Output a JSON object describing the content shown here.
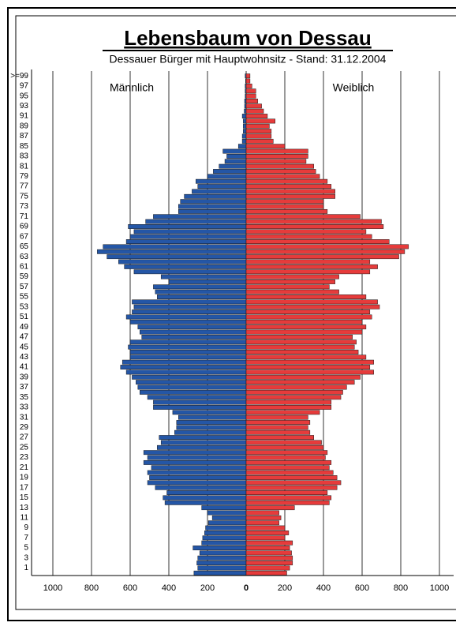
{
  "chart_data": {
    "type": "pyramid",
    "title": "Lebensbaum von Dessau",
    "subtitle": "Dessauer Bürger mit Hauptwohnsitz - Stand: 31.12.2004",
    "categories": [
      null,
      "1",
      null,
      "3",
      null,
      "5",
      null,
      "7",
      null,
      "9",
      null,
      "11",
      null,
      "13",
      null,
      "15",
      null,
      "17",
      null,
      "19",
      null,
      "21",
      null,
      "23",
      null,
      "25",
      null,
      "27",
      null,
      "29",
      null,
      "31",
      null,
      "33",
      null,
      "35",
      null,
      "37",
      null,
      "39",
      null,
      "41",
      null,
      "43",
      null,
      "45",
      null,
      "47",
      null,
      "49",
      null,
      "51",
      null,
      "53",
      null,
      "55",
      null,
      "57",
      null,
      "59",
      null,
      "61",
      null,
      "63",
      null,
      "65",
      null,
      "67",
      null,
      "69",
      null,
      "71",
      null,
      "73",
      null,
      "75",
      null,
      "77",
      null,
      "79",
      null,
      "81",
      null,
      "83",
      null,
      "85",
      null,
      "87",
      null,
      "89",
      null,
      "91",
      null,
      "93",
      null,
      "95",
      null,
      "97",
      null,
      ">=99"
    ],
    "series": [
      {
        "name": "Männlich",
        "color": "#2456a6",
        "values": [
          -270,
          -250,
          -255,
          -250,
          -240,
          -275,
          -230,
          -225,
          -215,
          -210,
          -195,
          -175,
          -200,
          -230,
          -420,
          -430,
          -410,
          -470,
          -510,
          -500,
          -510,
          -490,
          -530,
          -510,
          -530,
          -460,
          -440,
          -450,
          -370,
          -360,
          -360,
          -350,
          -380,
          -480,
          -480,
          -510,
          -550,
          -560,
          -570,
          -590,
          -620,
          -650,
          -640,
          -600,
          -600,
          -610,
          -600,
          -540,
          -550,
          -560,
          -600,
          -620,
          -590,
          -580,
          -590,
          -460,
          -470,
          -480,
          -400,
          -440,
          -580,
          -630,
          -660,
          -720,
          -770,
          -740,
          -620,
          -600,
          -580,
          -610,
          -520,
          -480,
          -350,
          -350,
          -340,
          -320,
          -280,
          -250,
          -260,
          -200,
          -170,
          -140,
          -110,
          -100,
          -120,
          -40,
          -20,
          -20,
          -15,
          -15,
          -15,
          -20,
          -10,
          -8,
          -8,
          -5,
          -5,
          -5,
          -3,
          -5
        ]
      },
      {
        "name": "Weiblich",
        "color": "#e63b3b",
        "values": [
          210,
          225,
          240,
          240,
          235,
          225,
          240,
          200,
          220,
          200,
          170,
          180,
          170,
          250,
          430,
          440,
          420,
          470,
          490,
          470,
          450,
          430,
          440,
          410,
          420,
          400,
          390,
          350,
          330,
          320,
          330,
          320,
          380,
          440,
          440,
          490,
          500,
          520,
          560,
          590,
          660,
          640,
          660,
          620,
          580,
          560,
          570,
          550,
          600,
          620,
          600,
          650,
          640,
          690,
          680,
          620,
          480,
          430,
          460,
          480,
          640,
          680,
          640,
          790,
          820,
          840,
          740,
          650,
          620,
          710,
          700,
          590,
          420,
          400,
          400,
          460,
          460,
          440,
          420,
          380,
          360,
          350,
          310,
          320,
          320,
          200,
          140,
          130,
          130,
          120,
          150,
          110,
          90,
          80,
          60,
          50,
          50,
          30,
          20,
          20
        ]
      }
    ],
    "xlim": [
      -1000,
      1000
    ],
    "xticks": [
      {
        "value": -1000,
        "label": "1000"
      },
      {
        "value": -800,
        "label": "800"
      },
      {
        "value": -600,
        "label": "600"
      },
      {
        "value": -400,
        "label": "400"
      },
      {
        "value": -200,
        "label": "200"
      },
      0,
      200,
      400,
      600,
      800,
      1000
    ],
    "grid": true
  }
}
